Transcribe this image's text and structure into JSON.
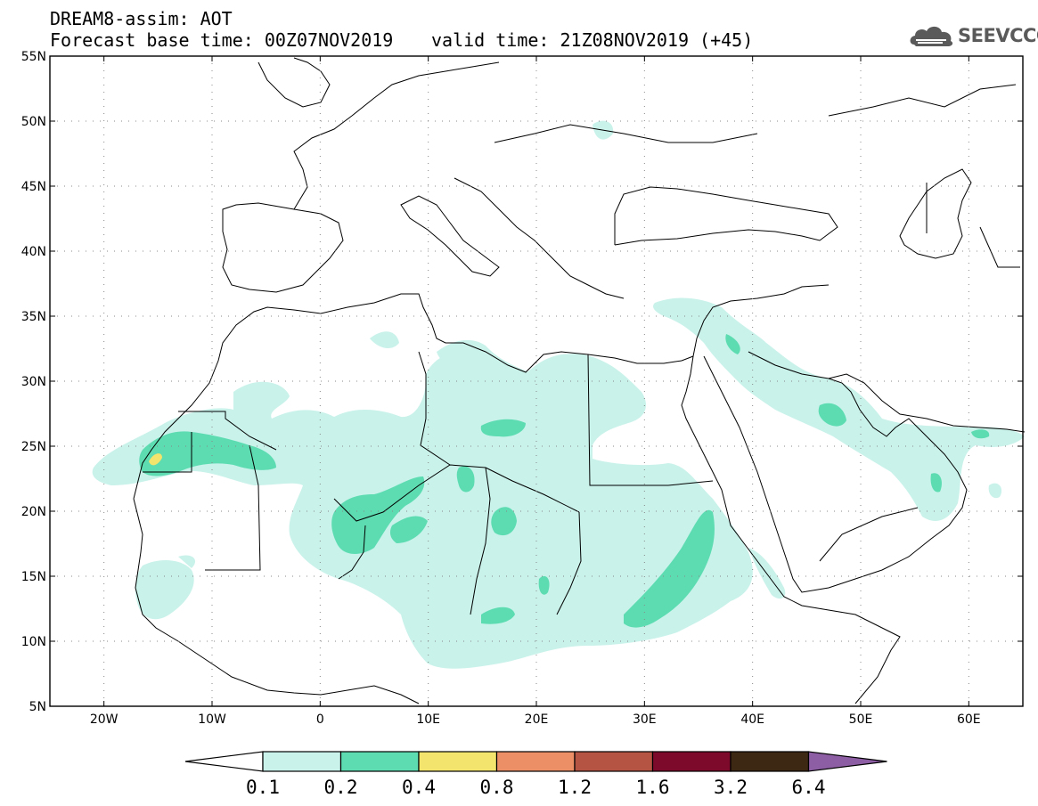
{
  "header": {
    "title": "DREAM8-assim: AOT",
    "base_time": "Forecast base time: 00Z07NOV2019",
    "valid_time": "valid time: 21Z08NOV2019 (+45)"
  },
  "logo": {
    "text": "SEEVCCC",
    "icon": "cloud-icon"
  },
  "map": {
    "projection": "lat-lon",
    "lon_range": [
      -25,
      65
    ],
    "lat_range": [
      5,
      55
    ],
    "grid": "dotted",
    "lat_ticks": [
      {
        "value": 55,
        "label": "55N"
      },
      {
        "value": 50,
        "label": "50N"
      },
      {
        "value": 45,
        "label": "45N"
      },
      {
        "value": 40,
        "label": "40N"
      },
      {
        "value": 35,
        "label": "35N"
      },
      {
        "value": 30,
        "label": "30N"
      },
      {
        "value": 25,
        "label": "25N"
      },
      {
        "value": 20,
        "label": "20N"
      },
      {
        "value": 15,
        "label": "15N"
      },
      {
        "value": 10,
        "label": "10N"
      },
      {
        "value": 5,
        "label": "5N"
      }
    ],
    "lon_ticks": [
      {
        "value": -20,
        "label": "20W"
      },
      {
        "value": -10,
        "label": "10W"
      },
      {
        "value": 0,
        "label": "0"
      },
      {
        "value": 10,
        "label": "10E"
      },
      {
        "value": 20,
        "label": "20E"
      },
      {
        "value": 30,
        "label": "30E"
      },
      {
        "value": 40,
        "label": "40E"
      },
      {
        "value": 50,
        "label": "50E"
      },
      {
        "value": 60,
        "label": "60E"
      }
    ]
  },
  "colorbar": {
    "colors": [
      "#c9f2ea",
      "#5ddcb2",
      "#f2e46c",
      "#ec8f67",
      "#b65444",
      "#7d0a2b",
      "#3d2814",
      "#8e5ea4"
    ],
    "under_color": "#ffffff",
    "labels": [
      "0.1",
      "0.2",
      "0.4",
      "0.8",
      "1.2",
      "1.6",
      "3.2",
      "6.4"
    ]
  },
  "coast_color": "#000000"
}
